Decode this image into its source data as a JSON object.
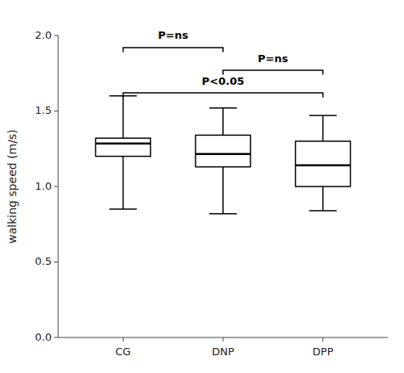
{
  "chart_data": {
    "type": "box",
    "categories": [
      "CG",
      "DNP",
      "DPP"
    ],
    "values": [
      {
        "whisker_low": 0.85,
        "q1": 1.2,
        "median": 1.285,
        "q3": 1.32,
        "whisker_high": 1.6
      },
      {
        "whisker_low": 0.82,
        "q1": 1.13,
        "median": 1.215,
        "q3": 1.34,
        "whisker_high": 1.52
      },
      {
        "whisker_low": 0.84,
        "q1": 1.0,
        "median": 1.14,
        "q3": 1.3,
        "whisker_high": 1.47
      }
    ],
    "color": "black",
    "y_label": "walking speed (m/s)",
    "ylim": [
      0.0,
      2.0
    ],
    "yticks": [
      {
        "value": 0,
        "label": "0.0"
      },
      0.5,
      {
        "value": 1,
        "label": "1.0"
      },
      1.5,
      {
        "value": 2,
        "label": "2.0"
      }
    ],
    "grid": false,
    "annotations": [
      {
        "x1": "CG",
        "x2": "DNP",
        "y": 1.92,
        "label": "P=ns"
      },
      {
        "x1": "DNP",
        "x2": "DPP",
        "y": 1.77,
        "label": "P=ns"
      },
      {
        "x1": "CG",
        "x2": "DPP",
        "y": 1.62,
        "label": "P<0.05"
      }
    ]
  }
}
